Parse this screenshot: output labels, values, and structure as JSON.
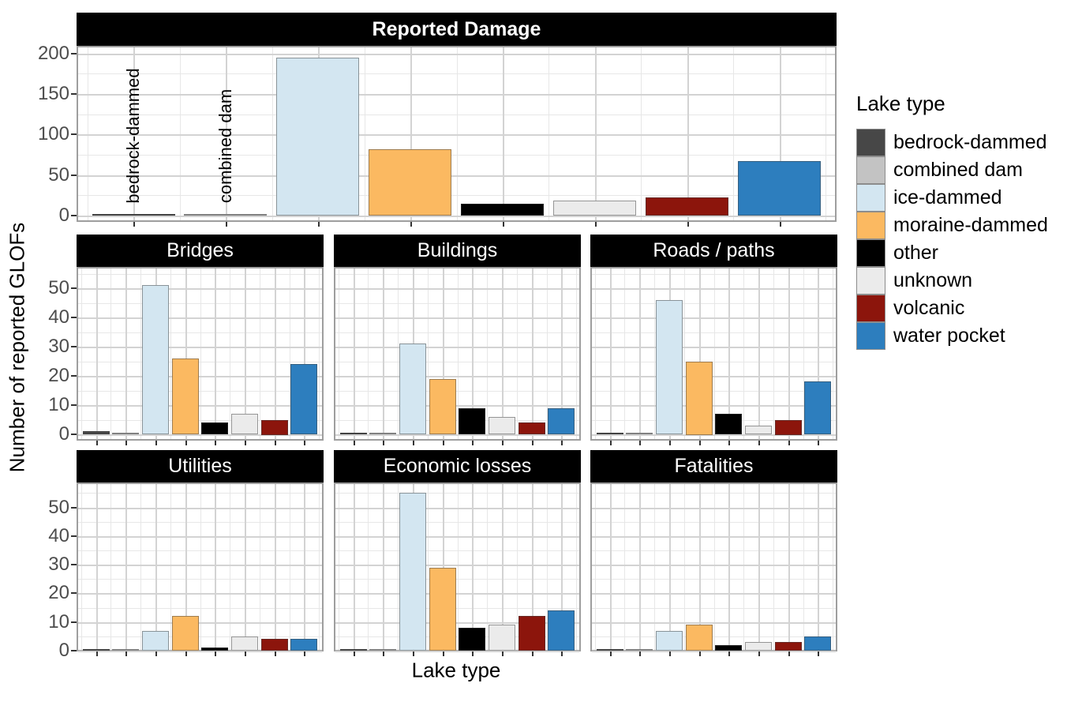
{
  "chart_data": {
    "type": "bar",
    "layout": "faceted",
    "legend_title": "Lake type",
    "legend_position": "right",
    "xlabel": "Lake type",
    "ylabel": "Number of reported GLOFs",
    "grid": true,
    "categories": [
      "bedrock-dammed",
      "combined dam",
      "ice-dammed",
      "moraine-dammed",
      "other",
      "unknown",
      "volcanic",
      "water pocket"
    ],
    "colors": [
      "#474747",
      "#C3C3C3",
      "#D3E6F1",
      "#FBB961",
      "#000000",
      "#EBEBEB",
      "#8C150C",
      "#2D7EBE"
    ],
    "facets": [
      {
        "title": "Reported Damage",
        "values": [
          1,
          1,
          195,
          82,
          15,
          19,
          22,
          67
        ],
        "y_ticks": [
          0,
          50,
          100,
          150,
          200
        ],
        "y_minor": [
          25,
          75,
          125,
          175
        ],
        "ylim": [
          0,
          205
        ]
      },
      {
        "title": "Bridges",
        "values": [
          1,
          0,
          51,
          26,
          4,
          7,
          5,
          24
        ],
        "y_ticks": [
          0,
          10,
          20,
          30,
          40,
          50
        ],
        "y_minor": [
          5,
          15,
          25,
          35,
          45,
          55
        ],
        "ylim": [
          0,
          57
        ]
      },
      {
        "title": "Buildings",
        "values": [
          0,
          0,
          31,
          19,
          9,
          6,
          4,
          9
        ],
        "y_ticks": [
          0,
          10,
          20,
          30,
          40,
          50
        ],
        "y_minor": [
          5,
          15,
          25,
          35,
          45,
          55
        ],
        "ylim": [
          0,
          57
        ]
      },
      {
        "title": "Roads / paths",
        "values": [
          0,
          0,
          46,
          25,
          7,
          3,
          5,
          18
        ],
        "y_ticks": [
          0,
          10,
          20,
          30,
          40,
          50
        ],
        "y_minor": [
          5,
          15,
          25,
          35,
          45,
          55
        ],
        "ylim": [
          0,
          57
        ]
      },
      {
        "title": "Utilities",
        "values": [
          0,
          0,
          7,
          12,
          1,
          5,
          4,
          4
        ],
        "y_ticks": [
          0,
          10,
          20,
          30,
          40,
          50
        ],
        "y_minor": [
          5,
          15,
          25,
          35,
          45,
          55
        ],
        "ylim": [
          0,
          57
        ]
      },
      {
        "title": "Economic losses",
        "values": [
          0,
          0,
          55,
          29,
          8,
          9,
          12,
          14
        ],
        "y_ticks": [
          0,
          10,
          20,
          30,
          40,
          50
        ],
        "y_minor": [
          5,
          15,
          25,
          35,
          45,
          55
        ],
        "ylim": [
          0,
          57
        ]
      },
      {
        "title": "Fatalities",
        "values": [
          0,
          0,
          7,
          9,
          2,
          3,
          3,
          5
        ],
        "y_ticks": [
          0,
          10,
          20,
          30,
          40,
          50
        ],
        "y_minor": [
          5,
          15,
          25,
          35,
          45,
          55
        ],
        "ylim": [
          0,
          57
        ]
      }
    ],
    "annotations": [
      {
        "text": "bedrock-dammed",
        "category": "bedrock-dammed",
        "facet": "Reported Damage"
      },
      {
        "text": "combined dam",
        "category": "combined dam",
        "facet": "Reported Damage"
      }
    ]
  }
}
